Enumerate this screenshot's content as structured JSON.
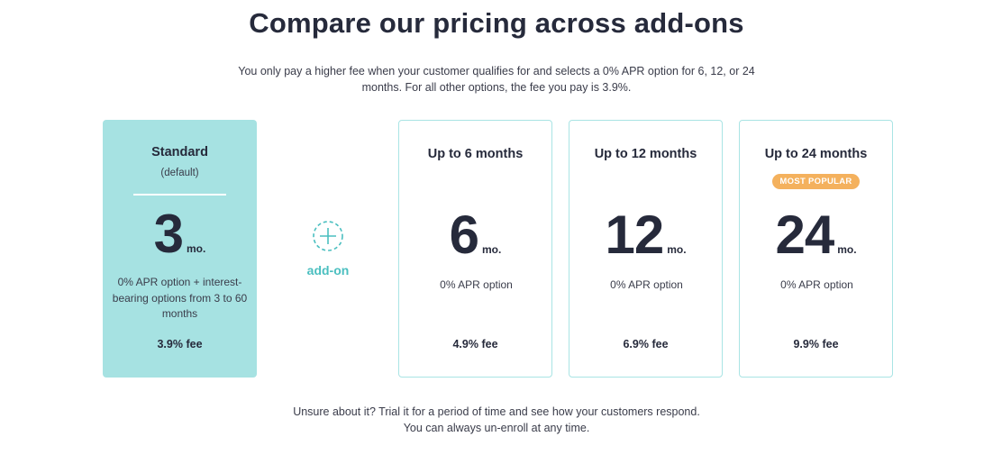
{
  "header": {
    "title": "Compare our pricing across add-ons",
    "subtitle": "You only pay a higher fee when your customer qualifies for and selects a 0% APR option for 6, 12, or 24 months. For all other options, the fee you pay is 3.9%."
  },
  "standard": {
    "title": "Standard",
    "default_label": "(default)",
    "number": "3",
    "unit": "mo.",
    "description": "0% APR option + interest-bearing options from 3 to 60 months",
    "fee": "3.9% fee"
  },
  "addon": {
    "icon": "plus-circle-dashed-icon",
    "label": "add-on"
  },
  "plans": [
    {
      "title": "Up to 6 months",
      "number": "6",
      "unit": "mo.",
      "description": "0% APR option",
      "fee": "4.9% fee"
    },
    {
      "title": "Up to 12 months",
      "number": "12",
      "unit": "mo.",
      "description": "0% APR option",
      "fee": "6.9% fee"
    },
    {
      "title": "Up to 24 months",
      "badge": "MOST POPULAR",
      "number": "24",
      "unit": "mo.",
      "description": "0% APR option",
      "fee": "9.9% fee"
    }
  ],
  "footer": {
    "line1": "Unsure about it? Trial it for a period of time and see how your customers respond.",
    "line2": "You can always un-enroll at any time."
  },
  "colors": {
    "standard_bg": "#a6e2e2",
    "card_border": "#a9e4e4",
    "accent": "#4bbfc0",
    "badge": "#f4b15d",
    "heading": "#262a3b"
  }
}
